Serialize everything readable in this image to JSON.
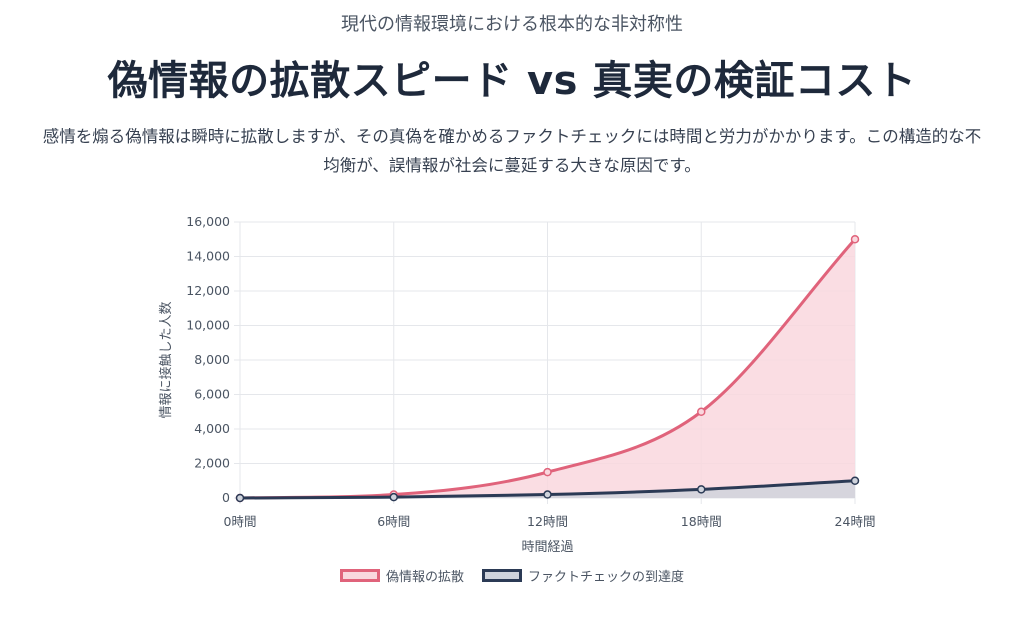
{
  "header": {
    "kicker": "現代の情報環境における根本的な非対称性",
    "title": "偽情報の拡散スピード vs 真実の検証コスト",
    "description": "感情を煽る偽情報は瞬時に拡散しますが、その真偽を確かめるファクトチェックには時間と労力がかかります。この構造的な不均衡が、誤情報が社会に蔓延する大きな原因です。"
  },
  "chart_data": {
    "type": "line",
    "x": [
      "0時間",
      "6時間",
      "12時間",
      "18時間",
      "24時間"
    ],
    "xlabel": "時間経過",
    "ylabel": "情報に接触した人数",
    "ylim": [
      0,
      16000
    ],
    "yticks": [
      0,
      2000,
      4000,
      6000,
      8000,
      10000,
      12000,
      14000,
      16000
    ],
    "grid": true,
    "legend_position": "bottom",
    "series": [
      {
        "name": "偽情報の拡散",
        "values": [
          0,
          200,
          1500,
          5000,
          15000
        ],
        "color": "#e0637b",
        "fill": "#f9d7de"
      },
      {
        "name": "ファクトチェックの到達度",
        "values": [
          0,
          50,
          200,
          500,
          1000
        ],
        "color": "#2b3a55",
        "fill": "#cfd3dc"
      }
    ]
  }
}
